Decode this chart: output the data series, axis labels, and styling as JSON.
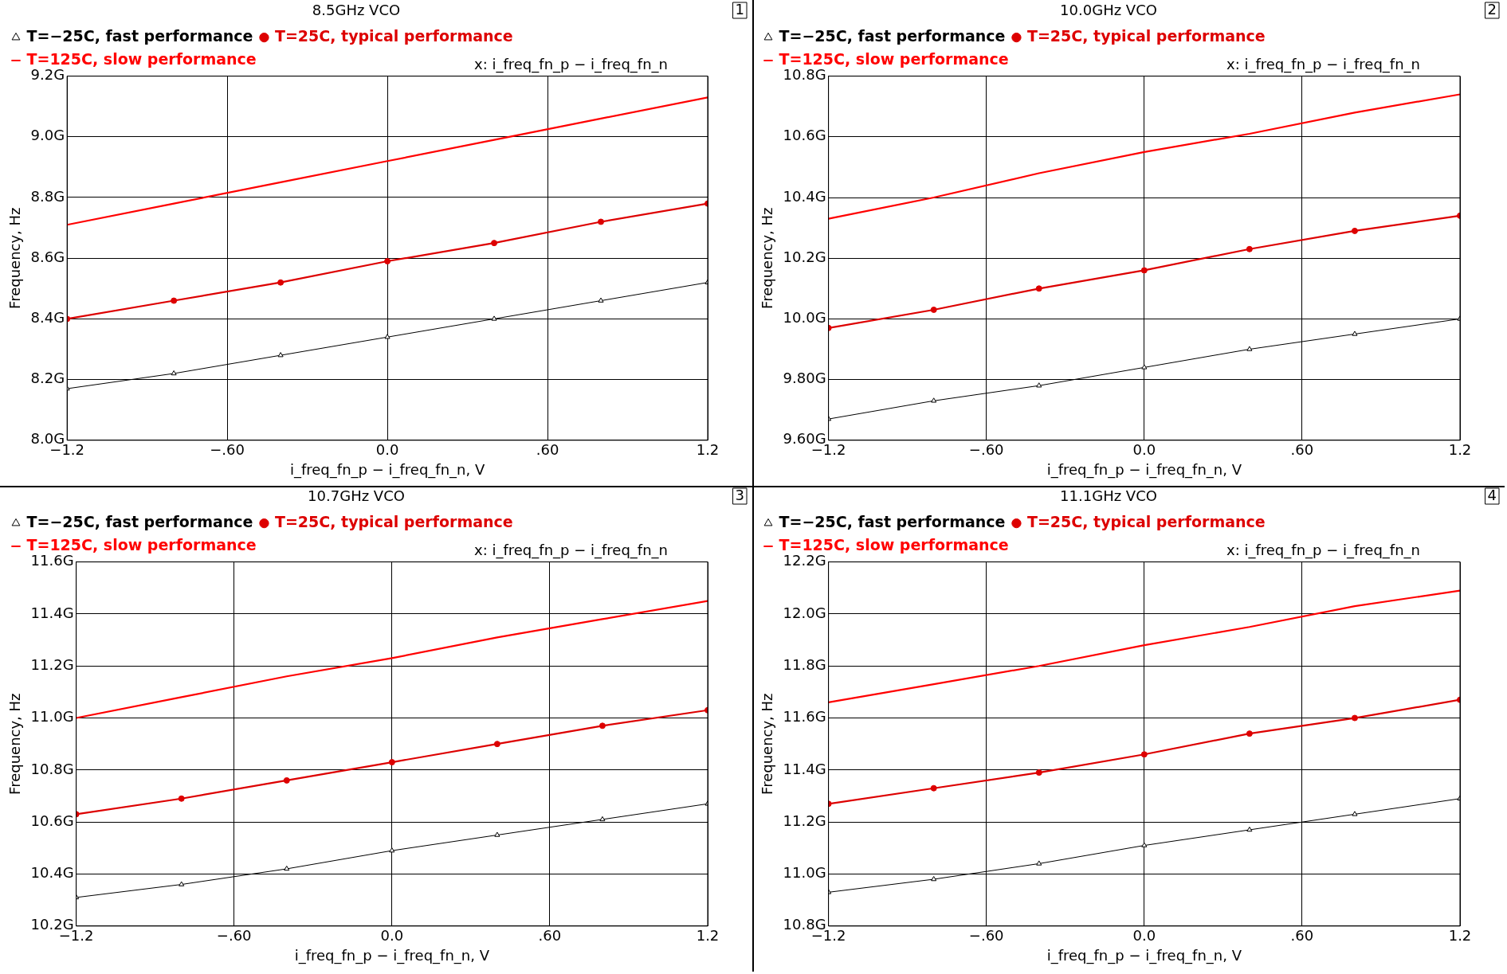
{
  "chart_data": [
    {
      "type": "line",
      "title": "8.5GHz VCO",
      "xlabel": "i_freq_fn_p − i_freq_fn_n, V",
      "ylabel": "Frequency, Hz",
      "x": [
        -1.2,
        -0.8,
        -0.4,
        0,
        0.4,
        0.8,
        1.2
      ],
      "series": [
        {
          "name": "T=−25C, fast performance",
          "color": "#000000",
          "marker": "triangle",
          "values": [
            8.17,
            8.22,
            8.28,
            8.34,
            8.4,
            8.46,
            8.52
          ]
        },
        {
          "name": "T=25C, typical performance",
          "color": "#dd0000",
          "marker": "circle",
          "values": [
            8.4,
            8.46,
            8.52,
            8.59,
            8.65,
            8.72,
            8.78
          ]
        },
        {
          "name": "T=125C, slow performance",
          "color": "#ff0000",
          "marker": "none",
          "values": [
            8.71,
            8.78,
            8.85,
            8.92,
            8.99,
            9.06,
            9.13
          ]
        }
      ],
      "xlim": [
        -1.2,
        1.2
      ],
      "xticks": [
        {
          "value": -1.2,
          "label": "−1.2"
        },
        {
          "value": -0.6,
          "label": "−.60"
        },
        {
          "value": 0,
          "label": "0.0"
        },
        {
          "value": 0.6,
          "label": ".60"
        },
        {
          "value": 1.2,
          "label": "1.2"
        }
      ],
      "ylim": [
        8.0,
        9.2
      ],
      "yticks": [
        {
          "value": 8.0,
          "label": "8.0G"
        },
        {
          "value": 8.2,
          "label": "8.2G"
        },
        {
          "value": 8.4,
          "label": "8.4G"
        },
        {
          "value": 8.6,
          "label": "8.6G"
        },
        {
          "value": 8.8,
          "label": "8.8G"
        },
        {
          "value": 9.0,
          "label": "9.0G"
        },
        {
          "value": 9.2,
          "label": "9.2G"
        }
      ],
      "grid": true,
      "legend": "top",
      "annotations": [
        "x: i_freq_fn_p − i_freq_fn_n",
        "1"
      ]
    },
    {
      "type": "line",
      "title": "10.0GHz VCO",
      "xlabel": "i_freq_fn_p − i_freq_fn_n, V",
      "ylabel": "Frequency, Hz",
      "x": [
        -1.2,
        -0.8,
        -0.4,
        0,
        0.4,
        0.8,
        1.2
      ],
      "series": [
        {
          "name": "T=−25C, fast performance",
          "color": "#000000",
          "marker": "triangle",
          "values": [
            9.67,
            9.73,
            9.78,
            9.84,
            9.9,
            9.95,
            10.0
          ]
        },
        {
          "name": "T=25C, typical performance",
          "color": "#dd0000",
          "marker": "circle",
          "values": [
            9.97,
            10.03,
            10.1,
            10.16,
            10.23,
            10.29,
            10.34
          ]
        },
        {
          "name": "T=125C, slow performance",
          "color": "#ff0000",
          "marker": "none",
          "values": [
            10.33,
            10.4,
            10.48,
            10.55,
            10.61,
            10.68,
            10.74
          ]
        }
      ],
      "xlim": [
        -1.2,
        1.2
      ],
      "xticks": [
        {
          "value": -1.2,
          "label": "−1.2"
        },
        {
          "value": -0.6,
          "label": "−.60"
        },
        {
          "value": 0,
          "label": "0.0"
        },
        {
          "value": 0.6,
          "label": ".60"
        },
        {
          "value": 1.2,
          "label": "1.2"
        }
      ],
      "ylim": [
        9.6,
        10.8
      ],
      "yticks": [
        {
          "value": 9.6,
          "label": "9.60G"
        },
        {
          "value": 9.8,
          "label": "9.80G"
        },
        {
          "value": 10.0,
          "label": "10.0G"
        },
        {
          "value": 10.2,
          "label": "10.2G"
        },
        {
          "value": 10.4,
          "label": "10.4G"
        },
        {
          "value": 10.6,
          "label": "10.6G"
        },
        {
          "value": 10.8,
          "label": "10.8G"
        }
      ],
      "grid": true,
      "legend": "top",
      "annotations": [
        "x: i_freq_fn_p − i_freq_fn_n",
        "2"
      ]
    },
    {
      "type": "line",
      "title": "10.7GHz VCO",
      "xlabel": "i_freq_fn_p − i_freq_fn_n, V",
      "ylabel": "Frequency, Hz",
      "x": [
        -1.2,
        -0.8,
        -0.4,
        0,
        0.4,
        0.8,
        1.2
      ],
      "series": [
        {
          "name": "T=−25C, fast performance",
          "color": "#000000",
          "marker": "triangle",
          "values": [
            10.31,
            10.36,
            10.42,
            10.49,
            10.55,
            10.61,
            10.67
          ]
        },
        {
          "name": "T=25C, typical performance",
          "color": "#dd0000",
          "marker": "circle",
          "values": [
            10.63,
            10.69,
            10.76,
            10.83,
            10.9,
            10.97,
            11.03
          ]
        },
        {
          "name": "T=125C, slow performance",
          "color": "#ff0000",
          "marker": "none",
          "values": [
            11.0,
            11.08,
            11.16,
            11.23,
            11.31,
            11.38,
            11.45
          ]
        }
      ],
      "xlim": [
        -1.2,
        1.2
      ],
      "xticks": [
        {
          "value": -1.2,
          "label": "−1.2"
        },
        {
          "value": -0.6,
          "label": "−.60"
        },
        {
          "value": 0,
          "label": "0.0"
        },
        {
          "value": 0.6,
          "label": ".60"
        },
        {
          "value": 1.2,
          "label": "1.2"
        }
      ],
      "ylim": [
        10.2,
        11.6
      ],
      "yticks": [
        {
          "value": 10.2,
          "label": "10.2G"
        },
        {
          "value": 10.4,
          "label": "10.4G"
        },
        {
          "value": 10.6,
          "label": "10.6G"
        },
        {
          "value": 10.8,
          "label": "10.8G"
        },
        {
          "value": 11.0,
          "label": "11.0G"
        },
        {
          "value": 11.2,
          "label": "11.2G"
        },
        {
          "value": 11.4,
          "label": "11.4G"
        },
        {
          "value": 11.6,
          "label": "11.6G"
        }
      ],
      "grid": true,
      "legend": "top",
      "annotations": [
        "x: i_freq_fn_p − i_freq_fn_n",
        "3"
      ]
    },
    {
      "type": "line",
      "title": "11.1GHz VCO",
      "xlabel": "i_freq_fn_p − i_freq_fn_n, V",
      "ylabel": "Frequency, Hz",
      "x": [
        -1.2,
        -0.8,
        -0.4,
        0,
        0.4,
        0.8,
        1.2
      ],
      "series": [
        {
          "name": "T=−25C, fast performance",
          "color": "#000000",
          "marker": "triangle",
          "values": [
            10.93,
            10.98,
            11.04,
            11.11,
            11.17,
            11.23,
            11.29
          ]
        },
        {
          "name": "T=25C, typical performance",
          "color": "#dd0000",
          "marker": "circle",
          "values": [
            11.27,
            11.33,
            11.39,
            11.46,
            11.54,
            11.6,
            11.67
          ]
        },
        {
          "name": "T=125C, slow performance",
          "color": "#ff0000",
          "marker": "none",
          "values": [
            11.66,
            11.73,
            11.8,
            11.88,
            11.95,
            12.03,
            12.09
          ]
        }
      ],
      "xlim": [
        -1.2,
        1.2
      ],
      "xticks": [
        {
          "value": -1.2,
          "label": "−1.2"
        },
        {
          "value": -0.6,
          "label": "−.60"
        },
        {
          "value": 0,
          "label": "0.0"
        },
        {
          "value": 0.6,
          "label": ".60"
        },
        {
          "value": 1.2,
          "label": "1.2"
        }
      ],
      "ylim": [
        10.8,
        12.2
      ],
      "yticks": [
        {
          "value": 10.8,
          "label": "10.8G"
        },
        {
          "value": 11.0,
          "label": "11.0G"
        },
        {
          "value": 11.2,
          "label": "11.2G"
        },
        {
          "value": 11.4,
          "label": "11.4G"
        },
        {
          "value": 11.6,
          "label": "11.6G"
        },
        {
          "value": 11.8,
          "label": "11.8G"
        },
        {
          "value": 12.0,
          "label": "12.0G"
        },
        {
          "value": 12.2,
          "label": "12.2G"
        }
      ],
      "grid": true,
      "legend": "top",
      "annotations": [
        "x: i_freq_fn_p − i_freq_fn_n",
        "4"
      ]
    }
  ]
}
